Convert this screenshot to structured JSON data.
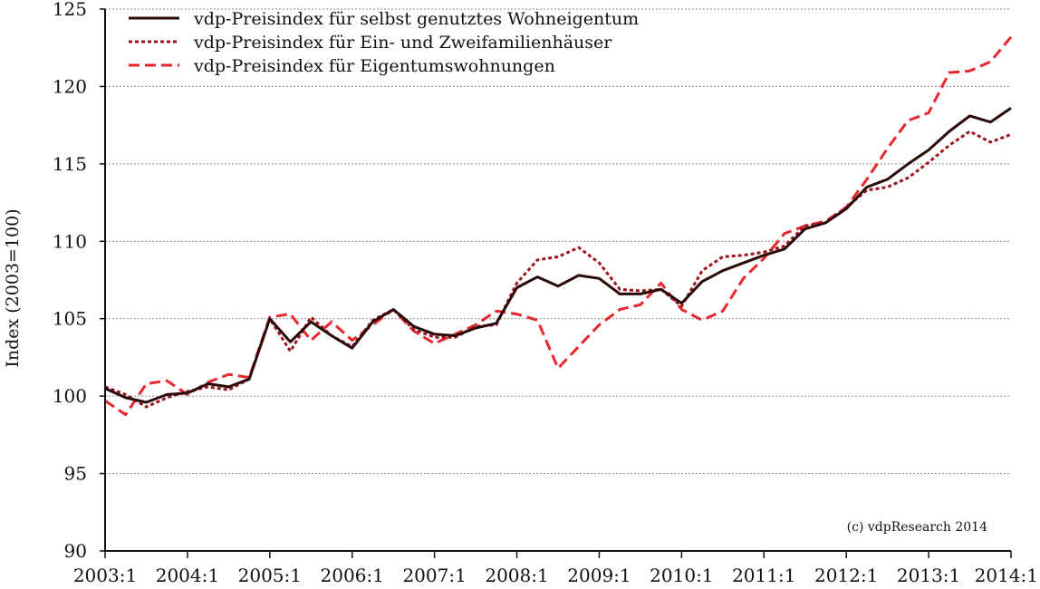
{
  "chart_data": {
    "type": "line",
    "title": "",
    "xlabel": "",
    "ylabel": "Index (2003=100)",
    "ylim": [
      90,
      125
    ],
    "yticks": [
      90,
      95,
      100,
      105,
      110,
      115,
      120,
      125
    ],
    "grid": "horizontal dotted",
    "legend_position": "top-left",
    "x_tick_labels": [
      "2003:1",
      "2004:1",
      "2005:1",
      "2006:1",
      "2007:1",
      "2008:1",
      "2009:1",
      "2010:1",
      "2011:1",
      "2012:1",
      "2013:1",
      "2014:1"
    ],
    "x": [
      "2003:1",
      "2003:2",
      "2003:3",
      "2003:4",
      "2004:1",
      "2004:2",
      "2004:3",
      "2004:4",
      "2005:1",
      "2005:2",
      "2005:3",
      "2005:4",
      "2006:1",
      "2006:2",
      "2006:3",
      "2006:4",
      "2007:1",
      "2007:2",
      "2007:3",
      "2007:4",
      "2008:1",
      "2008:2",
      "2008:3",
      "2008:4",
      "2009:1",
      "2009:2",
      "2009:3",
      "2009:4",
      "2010:1",
      "2010:2",
      "2010:3",
      "2010:4",
      "2011:1",
      "2011:2",
      "2011:3",
      "2011:4",
      "2012:1",
      "2012:2",
      "2012:3",
      "2012:4",
      "2013:1",
      "2013:2",
      "2013:3",
      "2013:4",
      "2014:1"
    ],
    "series": [
      {
        "name": "vdp-Preisindex für selbst genutztes Wohneigentum",
        "color": "#2b0a0a",
        "style": "solid",
        "values": [
          100.5,
          99.9,
          99.6,
          100.1,
          100.2,
          100.8,
          100.6,
          101.1,
          105.0,
          103.5,
          104.8,
          103.9,
          103.1,
          104.8,
          105.6,
          104.5,
          104.0,
          103.9,
          104.4,
          104.7,
          107.0,
          107.7,
          107.1,
          107.8,
          107.6,
          106.6,
          106.6,
          106.9,
          106.0,
          107.4,
          108.1,
          108.6,
          109.1,
          109.5,
          110.8,
          111.2,
          112.1,
          113.5,
          114.0,
          115.0,
          115.9,
          117.1,
          118.1,
          117.7,
          118.6
        ]
      },
      {
        "name": "vdp-Preisindex für Ein- und Zweifamilienhäuser",
        "color": "#9b1520",
        "style": "dotted",
        "values": [
          100.6,
          100.1,
          99.3,
          99.9,
          100.3,
          100.6,
          100.4,
          101.1,
          105.0,
          102.9,
          105.1,
          103.9,
          103.2,
          104.9,
          105.6,
          104.3,
          103.8,
          103.8,
          104.5,
          104.6,
          107.3,
          108.8,
          109.0,
          109.6,
          108.6,
          106.9,
          106.8,
          106.9,
          105.8,
          108.1,
          109.0,
          109.1,
          109.3,
          109.7,
          111.0,
          111.2,
          112.2,
          113.3,
          113.5,
          114.1,
          115.1,
          116.2,
          117.1,
          116.4,
          116.9
        ]
      },
      {
        "name": "vdp-Preisindex für Eigentumswohnungen",
        "color": "#e8262e",
        "style": "dashed",
        "values": [
          99.7,
          98.8,
          100.8,
          101.0,
          100.1,
          100.9,
          101.4,
          101.2,
          105.1,
          105.3,
          103.6,
          104.8,
          103.6,
          104.6,
          105.6,
          104.2,
          103.4,
          104.0,
          104.6,
          105.5,
          105.3,
          104.9,
          101.8,
          103.2,
          104.6,
          105.6,
          105.9,
          107.3,
          105.6,
          104.9,
          105.5,
          107.6,
          108.9,
          110.5,
          111.0,
          111.3,
          112.2,
          114.0,
          116.0,
          117.8,
          118.3,
          120.9,
          121.0,
          121.6,
          123.2
        ]
      }
    ],
    "annotations": [
      "(c) vdpResearch 2014"
    ]
  }
}
